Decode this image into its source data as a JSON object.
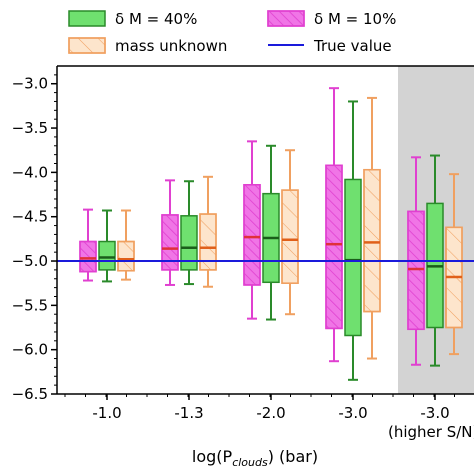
{
  "chart_data": {
    "type": "box",
    "xlabel_main": "log(P",
    "xlabel_sub": "clouds",
    "xlabel_tail": ") (bar)",
    "ylim": [
      -6.5,
      -2.8
    ],
    "yticks": [
      -3.0,
      -3.5,
      -4.0,
      -4.5,
      -5.0,
      -5.5,
      -6.0,
      -6.5
    ],
    "ytick_labels": [
      "−3.0",
      "−3.5",
      "−4.0",
      "−4.5",
      "−5.0",
      "−5.5",
      "−6.0",
      "−6.5"
    ],
    "categories": [
      "-1.0",
      "-1.3",
      "-2.0",
      "-3.0",
      "-3.0"
    ],
    "category_notes": [
      "",
      "",
      "",
      "",
      "(higher S/N)"
    ],
    "shaded_category_index": 4,
    "true_value": -5.0,
    "legend": {
      "entries": [
        {
          "label": "δ M = 40%",
          "key": "m40"
        },
        {
          "label": "δ M = 10%",
          "key": "m10"
        },
        {
          "label": "mass unknown",
          "key": "unknown"
        },
        {
          "label": "True value",
          "key": "truth"
        }
      ]
    },
    "series": [
      {
        "name": "δ M = 10%",
        "key": "m10",
        "offset": -1,
        "hatch": "dense",
        "fill": "#f075e6",
        "edge": "#e040d0",
        "median_color": "#e0303a",
        "boxes": [
          {
            "whislo": -5.22,
            "q1": -5.12,
            "med": -4.97,
            "q3": -4.78,
            "whishi": -4.42
          },
          {
            "whislo": -5.27,
            "q1": -5.1,
            "med": -4.86,
            "q3": -4.48,
            "whishi": -4.09
          },
          {
            "whislo": -5.65,
            "q1": -5.27,
            "med": -4.73,
            "q3": -4.14,
            "whishi": -3.65
          },
          {
            "whislo": -6.13,
            "q1": -5.76,
            "med": -4.81,
            "q3": -3.92,
            "whishi": -3.05
          },
          {
            "whislo": -6.17,
            "q1": -5.77,
            "med": -5.09,
            "q3": -4.44,
            "whishi": -3.83
          }
        ]
      },
      {
        "name": "δ M = 40%",
        "key": "m40",
        "offset": 0,
        "hatch": "none",
        "fill": "#6fe06f",
        "edge": "#2a8a2a",
        "median_color": "#1a5e1a",
        "boxes": [
          {
            "whislo": -5.23,
            "q1": -5.1,
            "med": -4.96,
            "q3": -4.78,
            "whishi": -4.43
          },
          {
            "whislo": -5.26,
            "q1": -5.1,
            "med": -4.85,
            "q3": -4.49,
            "whishi": -4.1
          },
          {
            "whislo": -5.66,
            "q1": -5.24,
            "med": -4.74,
            "q3": -4.24,
            "whishi": -3.7
          },
          {
            "whislo": -6.34,
            "q1": -5.84,
            "med": -4.99,
            "q3": -4.08,
            "whishi": -3.2
          },
          {
            "whislo": -6.18,
            "q1": -5.75,
            "med": -5.06,
            "q3": -4.35,
            "whishi": -3.81
          }
        ]
      },
      {
        "name": "mass unknown",
        "key": "unknown",
        "offset": 1,
        "hatch": "sparse",
        "fill": "#fde5cc",
        "edge": "#f0a060",
        "median_color": "#e0601a",
        "boxes": [
          {
            "whislo": -5.21,
            "q1": -5.11,
            "med": -4.98,
            "q3": -4.78,
            "whishi": -4.43
          },
          {
            "whislo": -5.29,
            "q1": -5.1,
            "med": -4.85,
            "q3": -4.47,
            "whishi": -4.05
          },
          {
            "whislo": -5.6,
            "q1": -5.25,
            "med": -4.76,
            "q3": -4.2,
            "whishi": -3.75
          },
          {
            "whislo": -6.1,
            "q1": -5.57,
            "med": -4.79,
            "q3": -3.97,
            "whishi": -3.16
          },
          {
            "whislo": -6.05,
            "q1": -5.75,
            "med": -5.18,
            "q3": -4.62,
            "whishi": -4.02
          }
        ]
      }
    ],
    "colors": {
      "truth_line": "#1a1adb",
      "shade": "#d3d3d3"
    }
  }
}
